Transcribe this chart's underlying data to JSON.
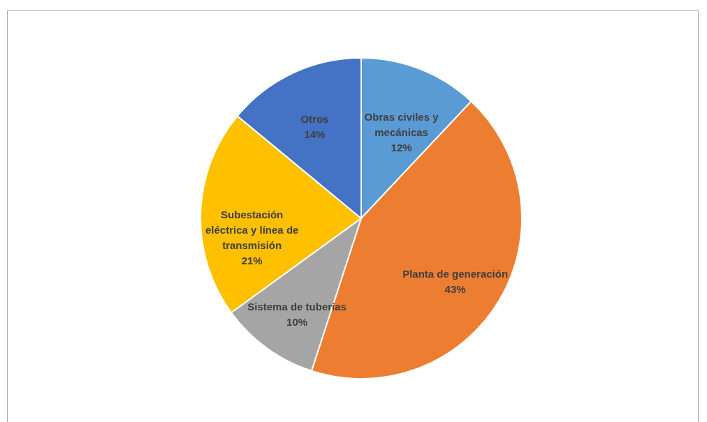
{
  "chart_data": {
    "type": "pie",
    "categories": [
      "Obras civiles y mecánicas",
      "Planta de generación",
      "Sistema de tuberías",
      "Subestación eléctrica y línea de transmisión",
      "Otros"
    ],
    "values": [
      12,
      43,
      10,
      21,
      14
    ],
    "colors": [
      "#5b9bd5",
      "#ed7d31",
      "#a5a5a5",
      "#ffc000",
      "#4472c4"
    ],
    "value_labels": [
      "12%",
      "43%",
      "10%",
      "21%",
      "14%"
    ]
  }
}
